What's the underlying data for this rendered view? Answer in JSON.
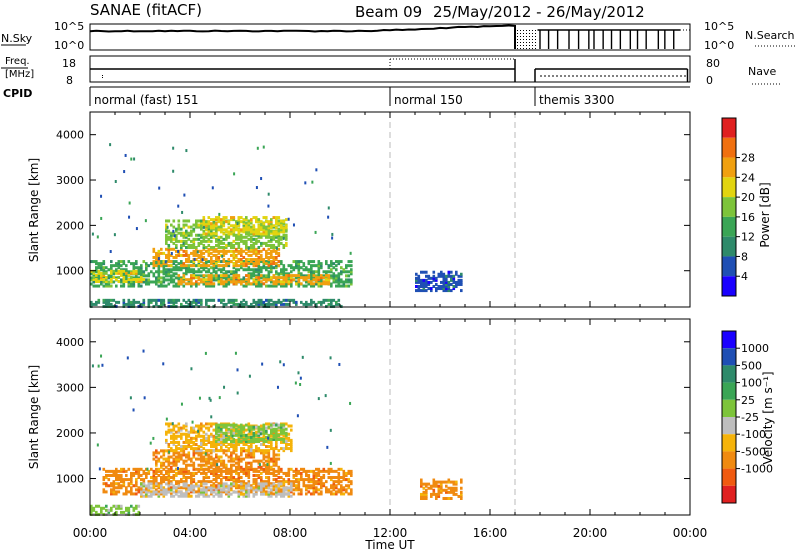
{
  "header": {
    "site": "SANAE (fitACF)",
    "beam": "Beam 09",
    "date_range": "25/May/2012 - 26/May/2012"
  },
  "strips": {
    "nsky_label": "N.Sky",
    "nsky_ticks": [
      "10^5",
      "10^0"
    ],
    "nsearch_label": "N.Search",
    "nsearch_ticks": [
      "10^5",
      "10^0"
    ],
    "freq_label_top": "Freq.",
    "freq_label_unit": "[MHz]",
    "freq_ticks": [
      "18",
      "8"
    ],
    "nave_label": "Nave",
    "nave_ticks": [
      "80",
      "0"
    ],
    "cpid_label": "CPID",
    "cpid_segments": [
      {
        "label": "normal (fast) 151",
        "start_hour": 0,
        "end_hour": 12
      },
      {
        "label": "normal 150",
        "start_hour": 12,
        "end_hour": 17
      },
      {
        "label": "themis 3300",
        "start_hour": 17.8,
        "end_hour": 24
      }
    ]
  },
  "colors": {
    "power": [
      "#1a00ff",
      "#1f4fb4",
      "#2e8a6a",
      "#3aa555",
      "#7dc43a",
      "#e2d410",
      "#f0a010",
      "#f07010",
      "#e02020"
    ],
    "velocity": [
      "#1a00ff",
      "#1f4fb4",
      "#2e8a6a",
      "#3aa555",
      "#7dc43a",
      "#bebebe",
      "#f5b30a",
      "#f08a10",
      "#f05a10",
      "#e02020"
    ]
  },
  "chart_data": [
    {
      "type": "heatmap",
      "name": "power",
      "xlabel": "Time UT",
      "ylabel": "Slant Range [km]",
      "xlim": [
        0,
        24
      ],
      "ylim": [
        200,
        4500
      ],
      "x_ticks": [
        "00:00",
        "04:00",
        "08:00",
        "12:00",
        "16:00",
        "20:00",
        "00:00"
      ],
      "y_ticks": [
        1000,
        2000,
        3000,
        4000
      ],
      "colorbar_label": "Power [dB]",
      "colorbar_ticks": [
        "4",
        "8",
        "12",
        "16",
        "20",
        "24",
        "28"
      ],
      "mode_change_hours": [
        12,
        17
      ],
      "regions": [
        {
          "x": [
            0,
            10.4
          ],
          "y": [
            650,
            1200
          ],
          "level": 3
        },
        {
          "x": [
            0,
            2.2
          ],
          "y": [
            750,
            1000
          ],
          "level": 5
        },
        {
          "x": [
            2.5,
            7.5
          ],
          "y": [
            1100,
            1500
          ],
          "level": 6
        },
        {
          "x": [
            3.0,
            7.8
          ],
          "y": [
            1500,
            2100
          ],
          "level": 4
        },
        {
          "x": [
            4.5,
            7.8
          ],
          "y": [
            1800,
            2200
          ],
          "level": 5
        },
        {
          "x": [
            3.5,
            9.5
          ],
          "y": [
            700,
            900
          ],
          "level": 6
        },
        {
          "x": [
            13.0,
            14.8
          ],
          "y": [
            550,
            1000
          ],
          "level": 1
        },
        {
          "x": [
            0,
            10.0
          ],
          "y": [
            200,
            350
          ],
          "level": 2
        }
      ]
    },
    {
      "type": "heatmap",
      "name": "velocity",
      "xlabel": "Time UT",
      "ylabel": "Slant Range [km]",
      "xlim": [
        0,
        24
      ],
      "ylim": [
        200,
        4500
      ],
      "x_ticks": [
        "00:00",
        "04:00",
        "08:00",
        "12:00",
        "16:00",
        "20:00",
        "00:00"
      ],
      "y_ticks": [
        1000,
        2000,
        3000,
        4000
      ],
      "colorbar_label": "Velocity [m s⁻¹]",
      "colorbar_ticks": [
        "1000",
        "500",
        "100",
        "25",
        "-25",
        "-100",
        "-500",
        "-1000"
      ],
      "mode_change_hours": [
        12,
        17
      ],
      "regions": [
        {
          "x": [
            0.5,
            10.4
          ],
          "y": [
            650,
            1200
          ],
          "level": 7
        },
        {
          "x": [
            2.0,
            8.0
          ],
          "y": [
            600,
            900
          ],
          "level": 5
        },
        {
          "x": [
            2.5,
            7.5
          ],
          "y": [
            1100,
            1600
          ],
          "level": 7
        },
        {
          "x": [
            3.0,
            8.0
          ],
          "y": [
            1600,
            2200
          ],
          "level": 6
        },
        {
          "x": [
            5.0,
            7.8
          ],
          "y": [
            1800,
            2200
          ],
          "level": 4
        },
        {
          "x": [
            13.2,
            14.8
          ],
          "y": [
            550,
            1000
          ],
          "level": 7
        },
        {
          "x": [
            0,
            2.0
          ],
          "y": [
            200,
            400
          ],
          "level": 4
        }
      ]
    }
  ]
}
